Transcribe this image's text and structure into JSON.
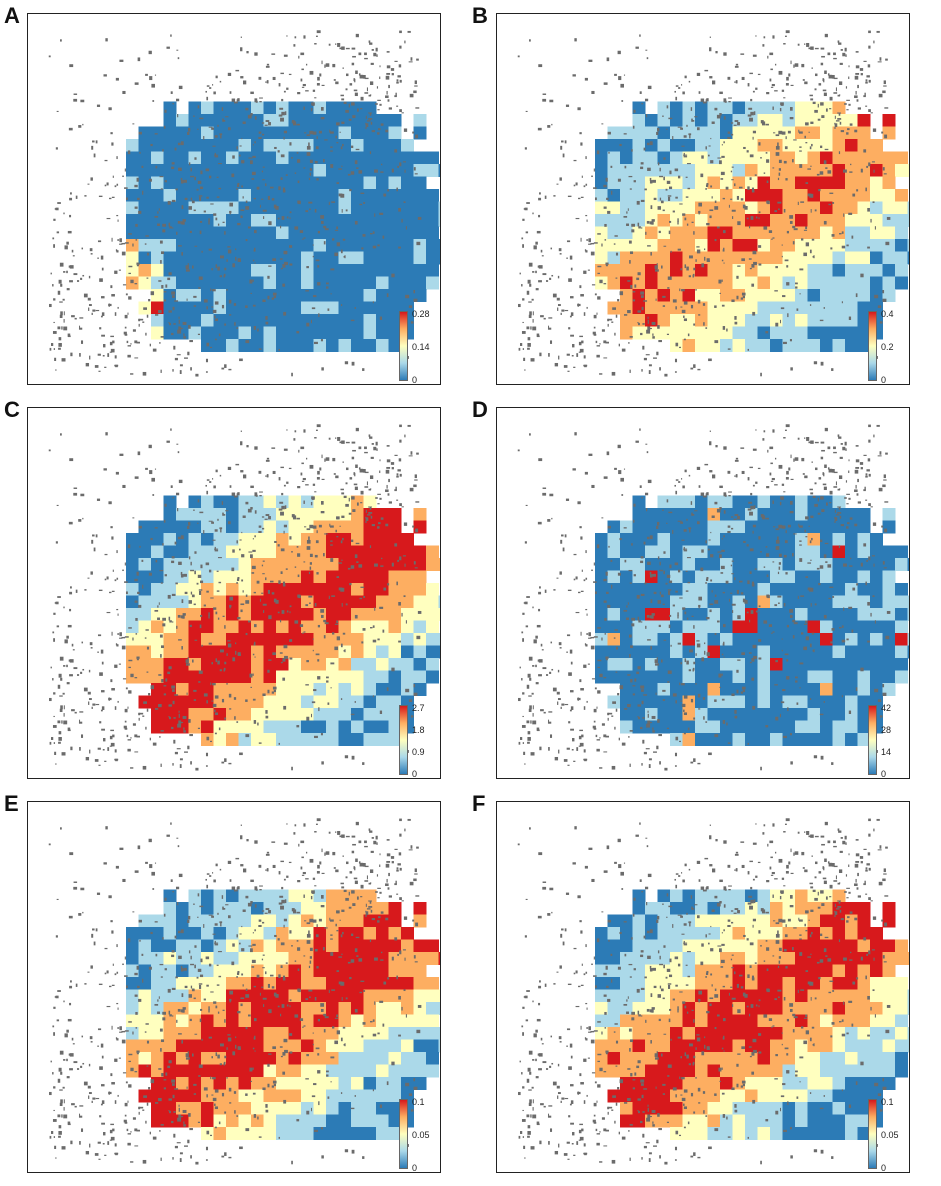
{
  "panels": [
    {
      "id": "A",
      "letter": "A",
      "legend": {
        "ticks": [
          "0.28",
          "0.14",
          "0"
        ]
      },
      "highlight": "low"
    },
    {
      "id": "B",
      "letter": "B",
      "legend": {
        "ticks": [
          "0.4",
          "0.2",
          "0"
        ]
      },
      "highlight": "medium"
    },
    {
      "id": "C",
      "letter": "C",
      "legend": {
        "ticks": [
          "2.7",
          "1.8",
          "0.9",
          "0"
        ]
      },
      "highlight": "high"
    },
    {
      "id": "D",
      "letter": "D",
      "legend": {
        "ticks": [
          "42",
          "28",
          "14",
          "0"
        ]
      },
      "highlight": "sparse"
    },
    {
      "id": "E",
      "letter": "E",
      "legend": {
        "ticks": [
          "0.1",
          "0.05",
          "0"
        ]
      },
      "highlight": "high"
    },
    {
      "id": "F",
      "letter": "F",
      "legend": {
        "ticks": [
          "0.1",
          "0.05",
          "0"
        ]
      },
      "highlight": "high"
    }
  ],
  "colors": {
    "low": "#2c7bb6",
    "lowmid": "#abd9e9",
    "mid": "#ffffbf",
    "midhigh": "#fdae61",
    "high": "#d7191c",
    "buildings": "#6b6b6b",
    "frame": "#222222"
  }
}
